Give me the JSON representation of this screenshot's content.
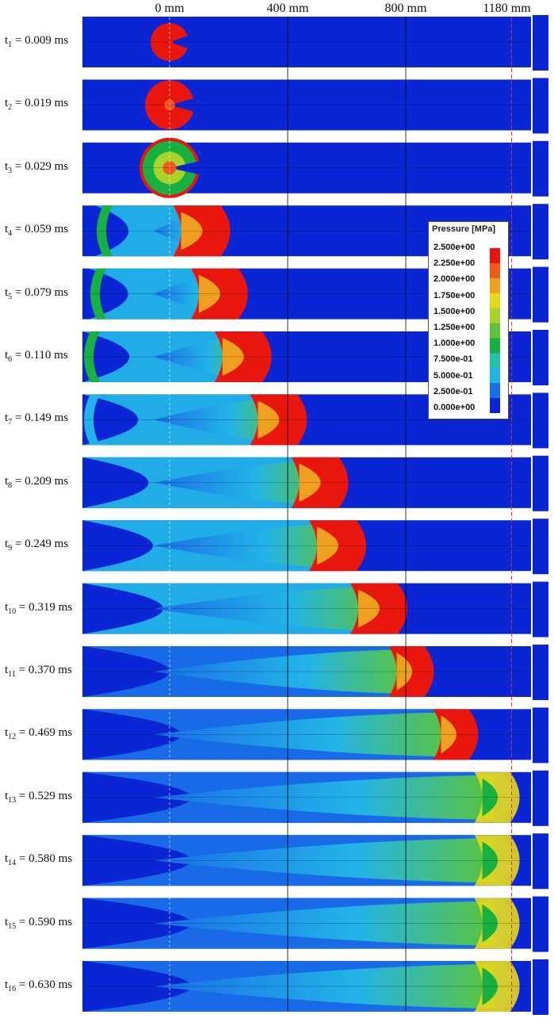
{
  "axis_markers": [
    {
      "label": "0 mm",
      "value_mm": 0
    },
    {
      "label": "400 mm",
      "value_mm": 400
    },
    {
      "label": "800 mm",
      "value_mm": 800
    },
    {
      "label": "1180 mm",
      "value_mm": 1180
    }
  ],
  "snapshots": [
    {
      "label_prefix": "t",
      "index": "1",
      "time": " = 0.009 ms",
      "front_mm": 80
    },
    {
      "label_prefix": "t",
      "index": "2",
      "time": " = 0.019 ms",
      "front_mm": 110
    },
    {
      "label_prefix": "t",
      "index": "3",
      "time": " = 0.029 ms",
      "front_mm": 140
    },
    {
      "label_prefix": "t",
      "index": "4",
      "time": " = 0.059 ms",
      "front_mm": 200
    },
    {
      "label_prefix": "t",
      "index": "5",
      "time": " = 0.079 ms",
      "front_mm": 260
    },
    {
      "label_prefix": "t",
      "index": "6",
      "time": " = 0.110 ms",
      "front_mm": 340
    },
    {
      "label_prefix": "t",
      "index": "7",
      "time": " = 0.149 ms",
      "front_mm": 460
    },
    {
      "label_prefix": "t",
      "index": "8",
      "time": " = 0.209 ms",
      "front_mm": 600
    },
    {
      "label_prefix": "t",
      "index": "9",
      "time": " = 0.249 ms",
      "front_mm": 660
    },
    {
      "label_prefix": "t",
      "index": "10",
      "time": " = 0.319 ms",
      "front_mm": 800
    },
    {
      "label_prefix": "t",
      "index": "11",
      "time": " = 0.370 ms",
      "front_mm": 890
    },
    {
      "label_prefix": "t",
      "index": "12",
      "time": " = 0.469 ms",
      "front_mm": 1040
    },
    {
      "label_prefix": "t",
      "index": "13",
      "time": " = 0.529 ms",
      "front_mm": 1180
    },
    {
      "label_prefix": "t",
      "index": "14",
      "time": " = 0.580 ms",
      "front_mm": 1180
    },
    {
      "label_prefix": "t",
      "index": "15",
      "time": " = 0.590 ms",
      "front_mm": 1180
    },
    {
      "label_prefix": "t",
      "index": "16",
      "time": " = 0.630 ms",
      "front_mm": 1180
    }
  ],
  "legend": {
    "title": "Pressure [MPa]",
    "items": [
      {
        "label": "2.500e+00",
        "color": "#e8160c"
      },
      {
        "label": "2.250e+00",
        "color": "#f2581a"
      },
      {
        "label": "2.000e+00",
        "color": "#f0a020"
      },
      {
        "label": "1.750e+00",
        "color": "#e8d81c"
      },
      {
        "label": "1.500e+00",
        "color": "#a8d42a"
      },
      {
        "label": "1.250e+00",
        "color": "#5cc438"
      },
      {
        "label": "1.000e+00",
        "color": "#18b040"
      },
      {
        "label": "7.500e-01",
        "color": "#22c4a8"
      },
      {
        "label": "5.000e-01",
        "color": "#22b4e8"
      },
      {
        "label": "2.500e-01",
        "color": "#1a6ee8"
      },
      {
        "label": "0.000e+00",
        "color": "#0a26d4"
      }
    ]
  },
  "colors": {
    "background_field": "#0a26d4"
  }
}
